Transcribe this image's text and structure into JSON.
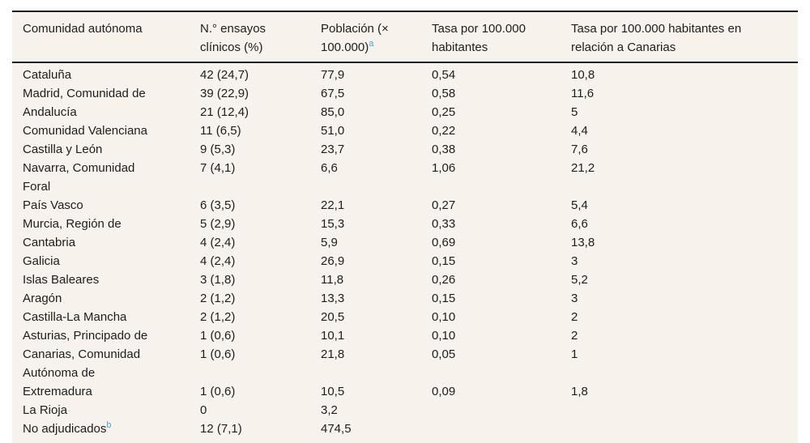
{
  "chart_data": {
    "type": "table",
    "columns": [
      {
        "id": "comunidad-autonoma",
        "label": "Comunidad autónoma"
      },
      {
        "id": "n-ensayos-clinicos",
        "label": "N.° ensayos\nclínicos (%)"
      },
      {
        "id": "poblacion",
        "label": "Población (×\n100.000)",
        "footnote": "a"
      },
      {
        "id": "tasa-100000",
        "label": "Tasa por 100.000\nhabitantes"
      },
      {
        "id": "tasa-relacion-canarias",
        "label": "Tasa por 100.000 habitantes en\nrelación a Canarias"
      }
    ],
    "rows": [
      {
        "values": [
          "Cataluña",
          "42 (24,7)",
          "77,9",
          "0,54",
          "10,8"
        ]
      },
      {
        "values": [
          "Madrid, Comunidad de",
          "39 (22,9)",
          "67,5",
          "0,58",
          "11,6"
        ]
      },
      {
        "values": [
          "Andalucía",
          "21 (12,4)",
          "85,0",
          "0,25",
          "5"
        ]
      },
      {
        "values": [
          "Comunidad Valenciana",
          "11 (6,5)",
          "51,0",
          "0,22",
          "4,4"
        ]
      },
      {
        "values": [
          "Castilla y León",
          "9 (5,3)",
          "23,7",
          "0,38",
          "7,6"
        ]
      },
      {
        "values": [
          "Navarra, Comunidad\nForal",
          "7 (4,1)",
          "6,6",
          "1,06",
          "21,2"
        ]
      },
      {
        "values": [
          "País Vasco",
          "6 (3,5)",
          "22,1",
          "0,27",
          "5,4"
        ]
      },
      {
        "values": [
          "Murcia, Región de",
          "5 (2,9)",
          "15,3",
          "0,33",
          "6,6"
        ]
      },
      {
        "values": [
          "Cantabria",
          "4 (2,4)",
          "5,9",
          "0,69",
          "13,8"
        ]
      },
      {
        "values": [
          "Galicia",
          "4 (2,4)",
          "26,9",
          "0,15",
          "3"
        ]
      },
      {
        "values": [
          "Islas Baleares",
          "3 (1,8)",
          "11,8",
          "0,26",
          "5,2"
        ]
      },
      {
        "values": [
          "Aragón",
          "2 (1,2)",
          "13,3",
          "0,15",
          "3"
        ]
      },
      {
        "values": [
          "Castilla-La Mancha",
          "2 (1,2)",
          "20,5",
          "0,10",
          "2"
        ]
      },
      {
        "values": [
          "Asturias, Principado de",
          "1 (0,6)",
          "10,1",
          "0,10",
          "2"
        ]
      },
      {
        "values": [
          "Canarias, Comunidad\nAutónoma de",
          "1 (0,6)",
          "21,8",
          "0,05",
          "1"
        ]
      },
      {
        "values": [
          "Extremadura",
          "1 (0,6)",
          "10,5",
          "0,09",
          "1,8"
        ]
      },
      {
        "values": [
          "La Rioja",
          "0",
          "3,2",
          "",
          ""
        ]
      },
      {
        "values": [
          "No adjudicados",
          "12 (7,1)",
          "474,5",
          "",
          ""
        ],
        "footnote": "b"
      }
    ]
  },
  "colors": {
    "table_background": "#f7f3ec",
    "rule": "#1a1a1a",
    "text": "#1d1d1d",
    "footnote_marker": "#4ba5d8"
  }
}
